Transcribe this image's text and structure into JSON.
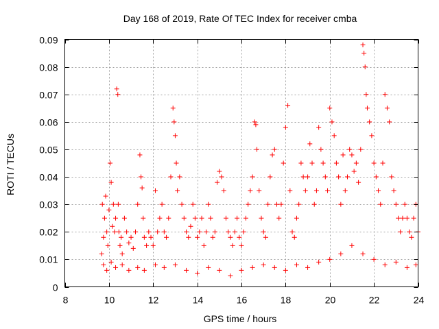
{
  "chart_data": {
    "type": "scatter",
    "title": "Day 168 of 2019, Rate Of TEC Index for receiver cmba",
    "xlabel": "GPS time / hours",
    "ylabel": "ROTI / TECUs",
    "xlim": [
      8,
      24
    ],
    "ylim": [
      0,
      0.09
    ],
    "x_ticks": [
      8,
      10,
      12,
      14,
      16,
      18,
      20,
      22,
      24
    ],
    "x_tick_labels": [
      "8",
      "10",
      "12",
      "14",
      "16",
      "18",
      "20",
      "22",
      "24"
    ],
    "y_ticks": [
      0,
      0.01,
      0.02,
      0.03,
      0.04,
      0.05,
      0.06,
      0.07,
      0.08,
      0.09
    ],
    "y_tick_labels": [
      "0",
      "0.01",
      "0.02",
      "0.03",
      "0.04",
      "0.05",
      "0.06",
      "0.07",
      "0.08",
      "0.09"
    ],
    "grid": true,
    "marker": "+",
    "series": [
      {
        "name": "ROTI",
        "color": "#ff0000",
        "x": [
          9.67,
          9.7,
          9.75,
          9.8,
          9.85,
          9.9,
          9.95,
          10.0,
          10.05,
          10.1,
          10.15,
          10.2,
          10.25,
          10.3,
          10.35,
          10.4,
          10.42,
          10.45,
          10.5,
          10.55,
          10.6,
          10.7,
          10.8,
          10.9,
          11.0,
          11.1,
          11.2,
          11.3,
          11.4,
          11.45,
          11.5,
          11.55,
          11.6,
          11.7,
          11.8,
          11.9,
          12.0,
          12.1,
          12.2,
          12.3,
          12.4,
          12.5,
          12.6,
          12.7,
          12.8,
          12.9,
          12.95,
          13.0,
          13.05,
          13.1,
          13.2,
          13.3,
          13.4,
          13.5,
          13.6,
          13.7,
          13.8,
          13.9,
          14.0,
          14.1,
          14.2,
          14.3,
          14.4,
          14.5,
          14.6,
          14.7,
          14.8,
          14.9,
          15.0,
          15.1,
          15.2,
          15.3,
          15.4,
          15.5,
          15.6,
          15.7,
          15.8,
          15.9,
          16.0,
          16.1,
          16.2,
          16.3,
          16.4,
          16.5,
          16.6,
          16.65,
          16.7,
          16.8,
          16.9,
          17.0,
          17.1,
          17.2,
          17.3,
          17.4,
          17.5,
          17.6,
          17.7,
          17.8,
          17.9,
          18.0,
          18.1,
          18.2,
          18.3,
          18.4,
          18.5,
          18.6,
          18.7,
          18.8,
          18.9,
          19.0,
          19.1,
          19.2,
          19.3,
          19.4,
          19.5,
          19.6,
          19.7,
          19.8,
          19.9,
          20.0,
          20.1,
          20.2,
          20.3,
          20.4,
          20.5,
          20.6,
          20.7,
          20.8,
          20.9,
          21.0,
          21.1,
          21.2,
          21.3,
          21.4,
          21.5,
          21.55,
          21.6,
          21.65,
          21.7,
          21.8,
          21.9,
          22.0,
          22.1,
          22.2,
          22.3,
          22.4,
          22.5,
          22.6,
          22.7,
          22.8,
          22.9,
          23.0,
          23.1,
          23.2,
          23.3,
          23.4,
          23.5,
          23.6,
          23.7,
          23.8,
          23.9,
          24.0,
          9.75,
          9.9,
          10.1,
          10.3,
          10.6,
          10.9,
          11.3,
          11.6,
          12.1,
          12.5,
          13.0,
          13.5,
          14.0,
          14.5,
          15.0,
          15.5,
          16.0,
          16.5,
          17.0,
          17.5,
          18.0,
          18.5,
          19.0,
          19.5,
          20.0,
          20.5,
          21.0,
          21.5,
          22.0,
          22.5,
          23.0,
          23.5,
          23.9
        ],
        "y": [
          0.012,
          0.03,
          0.018,
          0.025,
          0.033,
          0.02,
          0.015,
          0.028,
          0.045,
          0.038,
          0.022,
          0.03,
          0.02,
          0.025,
          0.072,
          0.07,
          0.03,
          0.02,
          0.015,
          0.018,
          0.012,
          0.025,
          0.02,
          0.016,
          0.018,
          0.014,
          0.02,
          0.03,
          0.048,
          0.04,
          0.036,
          0.025,
          0.018,
          0.015,
          0.02,
          0.018,
          0.015,
          0.035,
          0.02,
          0.025,
          0.03,
          0.02,
          0.018,
          0.025,
          0.04,
          0.065,
          0.06,
          0.055,
          0.045,
          0.035,
          0.04,
          0.03,
          0.025,
          0.02,
          0.018,
          0.022,
          0.03,
          0.025,
          0.018,
          0.02,
          0.025,
          0.015,
          0.02,
          0.03,
          0.025,
          0.018,
          0.02,
          0.038,
          0.042,
          0.04,
          0.035,
          0.025,
          0.02,
          0.018,
          0.015,
          0.02,
          0.025,
          0.018,
          0.015,
          0.02,
          0.025,
          0.03,
          0.035,
          0.04,
          0.06,
          0.059,
          0.05,
          0.035,
          0.025,
          0.02,
          0.018,
          0.03,
          0.04,
          0.048,
          0.05,
          0.03,
          0.025,
          0.03,
          0.045,
          0.058,
          0.066,
          0.035,
          0.02,
          0.018,
          0.025,
          0.03,
          0.045,
          0.04,
          0.035,
          0.04,
          0.052,
          0.045,
          0.03,
          0.035,
          0.058,
          0.05,
          0.045,
          0.04,
          0.035,
          0.065,
          0.06,
          0.055,
          0.045,
          0.04,
          0.03,
          0.048,
          0.035,
          0.04,
          0.05,
          0.048,
          0.042,
          0.045,
          0.038,
          0.05,
          0.088,
          0.085,
          0.08,
          0.07,
          0.065,
          0.06,
          0.055,
          0.045,
          0.04,
          0.035,
          0.03,
          0.045,
          0.07,
          0.065,
          0.06,
          0.04,
          0.035,
          0.03,
          0.025,
          0.02,
          0.025,
          0.03,
          0.025,
          0.02,
          0.018,
          0.025,
          0.03,
          0.02,
          0.008,
          0.006,
          0.009,
          0.007,
          0.008,
          0.006,
          0.007,
          0.006,
          0.008,
          0.007,
          0.008,
          0.006,
          0.005,
          0.007,
          0.006,
          0.004,
          0.006,
          0.007,
          0.008,
          0.007,
          0.006,
          0.008,
          0.007,
          0.009,
          0.01,
          0.012,
          0.015,
          0.012,
          0.01,
          0.008,
          0.009,
          0.007,
          0.008
        ]
      }
    ]
  }
}
